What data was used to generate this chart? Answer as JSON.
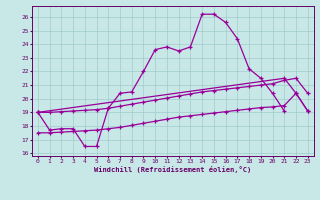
{
  "xlabel": "Windchill (Refroidissement éolien,°C)",
  "bg_color": "#c8e8e8",
  "grid_color": "#a0cccc",
  "line_color": "#990099",
  "xlim": [
    -0.5,
    23.5
  ],
  "ylim": [
    15.8,
    26.8
  ],
  "ytick_vals": [
    16,
    17,
    18,
    19,
    20,
    21,
    22,
    23,
    24,
    25,
    26
  ],
  "xtick_vals": [
    0,
    1,
    2,
    3,
    4,
    5,
    6,
    7,
    8,
    9,
    10,
    11,
    12,
    13,
    14,
    15,
    16,
    17,
    18,
    19,
    20,
    21,
    22,
    23
  ],
  "line1_x": [
    0,
    1,
    2,
    3,
    4,
    5,
    6,
    7,
    8,
    9,
    10,
    11,
    12,
    13,
    14,
    15,
    16,
    17,
    18,
    19,
    20,
    21
  ],
  "line1_y": [
    19.0,
    17.7,
    17.8,
    17.8,
    16.5,
    16.5,
    19.3,
    20.4,
    20.5,
    22.0,
    23.6,
    23.8,
    23.5,
    23.8,
    26.2,
    26.2,
    25.6,
    24.4,
    22.2,
    21.5,
    20.4,
    19.1
  ],
  "line2_x": [
    0,
    21,
    22,
    23
  ],
  "line2_y": [
    19.0,
    21.5,
    20.4,
    19.1
  ],
  "line3_x": [
    0,
    1,
    2,
    3,
    4,
    5,
    6,
    7,
    8,
    9,
    10,
    11,
    12,
    13,
    14,
    15,
    16,
    17,
    18,
    19,
    20,
    21,
    22,
    23
  ],
  "line3_y": [
    19.0,
    19.0,
    19.05,
    19.1,
    19.15,
    19.2,
    19.3,
    19.45,
    19.6,
    19.75,
    19.9,
    20.05,
    20.2,
    20.35,
    20.5,
    20.6,
    20.7,
    20.8,
    20.9,
    21.0,
    21.1,
    21.35,
    21.5,
    20.4
  ],
  "line4_x": [
    0,
    1,
    2,
    3,
    4,
    5,
    6,
    7,
    8,
    9,
    10,
    11,
    12,
    13,
    14,
    15,
    16,
    17,
    18,
    19,
    20,
    21,
    22,
    23
  ],
  "line4_y": [
    17.5,
    17.5,
    17.55,
    17.6,
    17.65,
    17.7,
    17.8,
    17.9,
    18.05,
    18.2,
    18.35,
    18.5,
    18.65,
    18.75,
    18.85,
    18.95,
    19.05,
    19.15,
    19.25,
    19.35,
    19.4,
    19.5,
    20.4,
    19.1
  ]
}
